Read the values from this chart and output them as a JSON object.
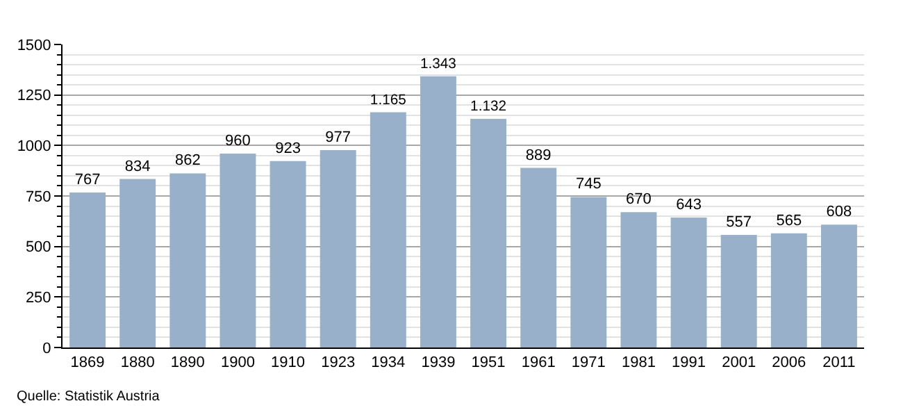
{
  "chart_data": {
    "type": "bar",
    "categories": [
      "1869",
      "1880",
      "1890",
      "1900",
      "1910",
      "1923",
      "1934",
      "1939",
      "1951",
      "1961",
      "1971",
      "1981",
      "1991",
      "2001",
      "2006",
      "2011"
    ],
    "values": [
      767,
      834,
      862,
      960,
      923,
      977,
      1165,
      1343,
      1132,
      889,
      745,
      670,
      643,
      557,
      565,
      608
    ],
    "value_labels": [
      "767",
      "834",
      "862",
      "960",
      "923",
      "977",
      "1.165",
      "1.343",
      "1.132",
      "889",
      "745",
      "670",
      "643",
      "557",
      "565",
      "608"
    ],
    "color": "#98b0ca",
    "ylim": [
      0,
      1500
    ],
    "yticks": [
      0,
      {
        "value": 50,
        "label": null
      },
      {
        "value": 100,
        "label": null
      },
      {
        "value": 150,
        "label": null
      },
      {
        "value": 200,
        "label": null
      },
      250,
      {
        "value": 300,
        "label": null
      },
      {
        "value": 350,
        "label": null
      },
      {
        "value": 400,
        "label": null
      },
      {
        "value": 450,
        "label": null
      },
      500,
      {
        "value": 550,
        "label": null
      },
      {
        "value": 600,
        "label": null
      },
      {
        "value": 650,
        "label": null
      },
      {
        "value": 700,
        "label": null
      },
      750,
      {
        "value": 800,
        "label": null
      },
      {
        "value": 850,
        "label": null
      },
      {
        "value": 900,
        "label": null
      },
      {
        "value": 950,
        "label": null
      },
      1000,
      {
        "value": 1050,
        "label": null
      },
      {
        "value": 1100,
        "label": null
      },
      {
        "value": 1150,
        "label": null
      },
      {
        "value": 1200,
        "label": null
      },
      1250,
      {
        "value": 1300,
        "label": null
      },
      {
        "value": 1350,
        "label": null
      },
      {
        "value": 1400,
        "label": null
      },
      {
        "value": 1450,
        "label": null
      },
      1500
    ],
    "grid": "y",
    "annotations": [
      "Quelle: Statistik Austria"
    ]
  }
}
